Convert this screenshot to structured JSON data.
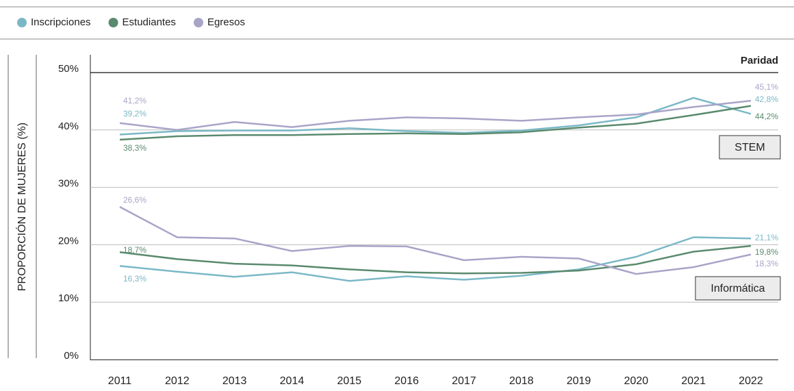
{
  "chart_data": {
    "type": "line",
    "y_label": "PROPORCIÓN DE MUJERES (%)",
    "annotation": "Paridad",
    "groups": [
      "STEM",
      "Informática"
    ],
    "categories": [
      "2011",
      "2012",
      "2013",
      "2014",
      "2015",
      "2016",
      "2017",
      "2018",
      "2019",
      "2020",
      "2021",
      "2022"
    ],
    "ylim": [
      0,
      50
    ],
    "yticks": [
      {
        "value": 0,
        "label": "0%"
      },
      {
        "value": 10,
        "label": "10%"
      },
      {
        "value": 20,
        "label": "20%"
      },
      {
        "value": 30,
        "label": "30%"
      },
      {
        "value": 40,
        "label": "40%"
      },
      {
        "value": 50,
        "label": "50%"
      }
    ],
    "grid": true,
    "series": [
      {
        "name": "Inscripciones",
        "color": "#7ab8c6",
        "stem": {
          "values": [
            39.2,
            39.8,
            39.9,
            39.9,
            40.3,
            39.8,
            39.5,
            39.9,
            40.8,
            42.2,
            45.6,
            42.8
          ],
          "value_labels": [
            "39,2%",
            null,
            null,
            null,
            null,
            null,
            null,
            null,
            null,
            null,
            null,
            "42,8%"
          ]
        },
        "informatica": {
          "values": [
            16.3,
            15.3,
            14.4,
            15.2,
            13.7,
            14.5,
            13.9,
            14.6,
            15.7,
            17.9,
            21.3,
            21.1
          ],
          "value_labels": [
            "16,3%",
            null,
            null,
            null,
            null,
            null,
            null,
            null,
            null,
            null,
            null,
            "21,1%"
          ]
        }
      },
      {
        "name": "Estudiantes",
        "color": "#5a8a6e",
        "stem": {
          "values": [
            38.3,
            38.9,
            39.1,
            39.1,
            39.3,
            39.4,
            39.3,
            39.6,
            40.4,
            41.1,
            42.6,
            44.2
          ],
          "value_labels": [
            "38,3%",
            null,
            null,
            null,
            null,
            null,
            null,
            null,
            null,
            null,
            null,
            "44,2%"
          ]
        },
        "informatica": {
          "values": [
            18.7,
            17.5,
            16.7,
            16.4,
            15.7,
            15.2,
            15.0,
            15.1,
            15.5,
            16.6,
            18.8,
            19.8
          ],
          "value_labels": [
            "18,7%",
            null,
            null,
            null,
            null,
            null,
            null,
            null,
            null,
            null,
            null,
            "19,8%"
          ]
        }
      },
      {
        "name": "Egresos",
        "color": "#a8a4c8",
        "stem": {
          "values": [
            41.2,
            40.0,
            41.4,
            40.5,
            41.6,
            42.2,
            42.0,
            41.6,
            42.2,
            42.7,
            44.0,
            45.1
          ],
          "value_labels": [
            "41,2%",
            null,
            null,
            null,
            null,
            null,
            null,
            null,
            null,
            null,
            null,
            "45,1%"
          ]
        },
        "informatica": {
          "values": [
            26.6,
            21.3,
            21.1,
            18.9,
            19.8,
            19.7,
            17.3,
            17.9,
            17.6,
            14.9,
            16.1,
            18.3
          ],
          "value_labels": [
            "26,6%",
            null,
            null,
            null,
            null,
            null,
            null,
            null,
            null,
            null,
            null,
            "18,3%"
          ]
        }
      }
    ]
  }
}
